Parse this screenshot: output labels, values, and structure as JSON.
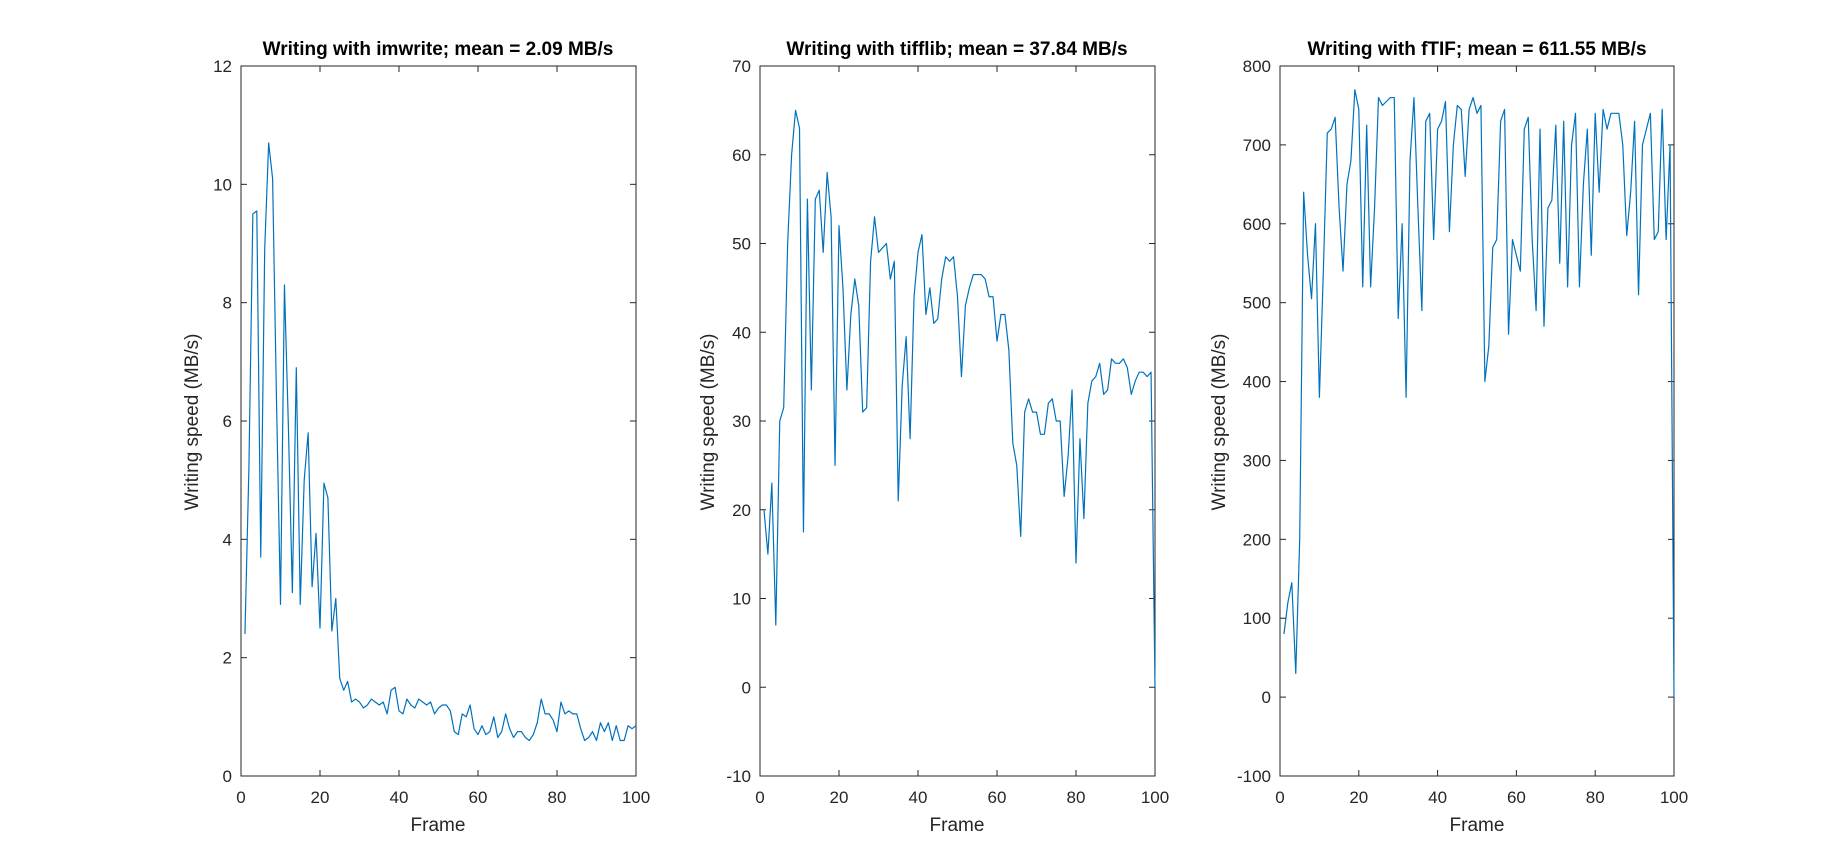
{
  "chart_data": [
    {
      "type": "line",
      "title": "Writing with imwrite; mean = 2.09 MB/s",
      "xlabel": "Frame",
      "ylabel": "Writing speed (MB/s)",
      "xlim": [
        0,
        100
      ],
      "ylim": [
        0,
        12
      ],
      "xticks": [
        "0",
        "20",
        "40",
        "60",
        "80",
        "100"
      ],
      "yticks": [
        "0",
        "2",
        "4",
        "6",
        "8",
        "10",
        "12"
      ],
      "grid": false,
      "color": "#0072BD",
      "x": [
        1,
        2,
        3,
        4,
        5,
        6,
        7,
        8,
        9,
        10,
        11,
        12,
        13,
        14,
        15,
        16,
        17,
        18,
        19,
        20,
        21,
        22,
        23,
        24,
        25,
        26,
        27,
        28,
        29,
        30,
        31,
        32,
        33,
        34,
        35,
        36,
        37,
        38,
        39,
        40,
        41,
        42,
        43,
        44,
        45,
        46,
        47,
        48,
        49,
        50,
        51,
        52,
        53,
        54,
        55,
        56,
        57,
        58,
        59,
        60,
        61,
        62,
        63,
        64,
        65,
        66,
        67,
        68,
        69,
        70,
        71,
        72,
        73,
        74,
        75,
        76,
        77,
        78,
        79,
        80,
        81,
        82,
        83,
        84,
        85,
        86,
        87,
        88,
        89,
        90,
        91,
        92,
        93,
        94,
        95,
        96,
        97,
        98,
        99,
        100
      ],
      "y": [
        2.4,
        5.2,
        9.5,
        9.55,
        3.7,
        8.9,
        10.7,
        10.1,
        6.3,
        2.9,
        8.3,
        5.9,
        3.1,
        6.9,
        2.9,
        5.0,
        5.8,
        3.2,
        4.1,
        2.5,
        4.95,
        4.7,
        2.45,
        3.0,
        1.65,
        1.45,
        1.6,
        1.25,
        1.3,
        1.25,
        1.15,
        1.2,
        1.3,
        1.25,
        1.2,
        1.25,
        1.05,
        1.45,
        1.5,
        1.1,
        1.05,
        1.3,
        1.2,
        1.15,
        1.3,
        1.25,
        1.2,
        1.25,
        1.05,
        1.15,
        1.2,
        1.2,
        1.1,
        0.75,
        0.7,
        1.05,
        1.0,
        1.2,
        0.8,
        0.7,
        0.85,
        0.7,
        0.75,
        1.0,
        0.65,
        0.75,
        1.05,
        0.8,
        0.65,
        0.75,
        0.75,
        0.65,
        0.6,
        0.7,
        0.9,
        1.3,
        1.05,
        1.05,
        0.95,
        0.75,
        1.25,
        1.05,
        1.1,
        1.05,
        1.05,
        0.8,
        0.6,
        0.65,
        0.75,
        0.6,
        0.9,
        0.75,
        0.9,
        0.6,
        0.85,
        0.6,
        0.6,
        0.85,
        0.8,
        0.85
      ]
    },
    {
      "type": "line",
      "title": "Writing with tifflib; mean = 37.84 MB/s",
      "xlabel": "Frame",
      "ylabel": "Writing speed (MB/s)",
      "xlim": [
        0,
        100
      ],
      "ylim": [
        -10,
        70
      ],
      "xticks": [
        "0",
        "20",
        "40",
        "60",
        "80",
        "100"
      ],
      "yticks": [
        "-10",
        "0",
        "10",
        "20",
        "30",
        "40",
        "50",
        "60",
        "70"
      ],
      "grid": false,
      "color": "#0072BD",
      "x": [
        1,
        2,
        3,
        4,
        5,
        6,
        7,
        8,
        9,
        10,
        11,
        12,
        13,
        14,
        15,
        16,
        17,
        18,
        19,
        20,
        21,
        22,
        23,
        24,
        25,
        26,
        27,
        28,
        29,
        30,
        31,
        32,
        33,
        34,
        35,
        36,
        37,
        38,
        39,
        40,
        41,
        42,
        43,
        44,
        45,
        46,
        47,
        48,
        49,
        50,
        51,
        52,
        53,
        54,
        55,
        56,
        57,
        58,
        59,
        60,
        61,
        62,
        63,
        64,
        65,
        66,
        67,
        68,
        69,
        70,
        71,
        72,
        73,
        74,
        75,
        76,
        77,
        78,
        79,
        80,
        81,
        82,
        83,
        84,
        85,
        86,
        87,
        88,
        89,
        90,
        91,
        92,
        93,
        94,
        95,
        96,
        97,
        98,
        99,
        100
      ],
      "y": [
        20,
        15,
        23,
        7,
        30,
        31.5,
        50,
        60,
        65,
        63,
        17.5,
        55,
        33.5,
        55,
        56,
        49,
        58,
        53,
        25,
        52,
        45,
        33.5,
        42,
        46,
        43,
        31,
        31.5,
        48,
        53,
        49,
        49.5,
        50,
        46,
        48,
        21,
        34,
        39.5,
        28,
        44,
        49,
        51,
        42,
        45,
        41,
        41.5,
        46,
        48.5,
        48,
        48.5,
        44,
        35,
        43,
        45,
        46.5,
        46.5,
        46.5,
        46,
        44,
        44,
        39,
        42,
        42,
        38,
        27.5,
        25,
        17,
        31,
        32.5,
        31,
        31,
        28.5,
        28.5,
        32,
        32.5,
        30,
        30,
        21.5,
        26,
        33.5,
        14,
        28,
        19,
        32,
        34.5,
        35,
        36.5,
        33,
        33.5,
        37,
        36.5,
        36.5,
        37,
        36,
        33,
        34.5,
        35.5,
        35.5,
        35,
        35.5,
        0
      ]
    },
    {
      "type": "line",
      "title": "Writing with fTIF; mean = 611.55 MB/s",
      "xlabel": "Frame",
      "ylabel": "Writing speed (MB/s)",
      "xlim": [
        0,
        100
      ],
      "ylim": [
        -100,
        800
      ],
      "xticks": [
        "0",
        "20",
        "40",
        "60",
        "80",
        "100"
      ],
      "yticks": [
        "-100",
        "0",
        "100",
        "200",
        "300",
        "400",
        "500",
        "600",
        "700",
        "800"
      ],
      "grid": false,
      "color": "#0072BD",
      "x": [
        1,
        2,
        3,
        4,
        5,
        6,
        7,
        8,
        9,
        10,
        11,
        12,
        13,
        14,
        15,
        16,
        17,
        18,
        19,
        20,
        21,
        22,
        23,
        24,
        25,
        26,
        27,
        28,
        29,
        30,
        31,
        32,
        33,
        34,
        35,
        36,
        37,
        38,
        39,
        40,
        41,
        42,
        43,
        44,
        45,
        46,
        47,
        48,
        49,
        50,
        51,
        52,
        53,
        54,
        55,
        56,
        57,
        58,
        59,
        60,
        61,
        62,
        63,
        64,
        65,
        66,
        67,
        68,
        69,
        70,
        71,
        72,
        73,
        74,
        75,
        76,
        77,
        78,
        79,
        80,
        81,
        82,
        83,
        84,
        85,
        86,
        87,
        88,
        89,
        90,
        91,
        92,
        93,
        94,
        95,
        96,
        97,
        98,
        99,
        100
      ],
      "y": [
        80,
        120,
        145,
        30,
        200,
        640,
        560,
        505,
        600,
        380,
        540,
        715,
        720,
        735,
        620,
        540,
        650,
        680,
        770,
        745,
        520,
        725,
        520,
        620,
        760,
        750,
        755,
        760,
        760,
        480,
        600,
        380,
        680,
        760,
        620,
        490,
        730,
        740,
        580,
        720,
        730,
        755,
        590,
        700,
        750,
        745,
        660,
        745,
        760,
        740,
        750,
        400,
        445,
        570,
        580,
        730,
        745,
        460,
        580,
        560,
        540,
        720,
        735,
        580,
        490,
        720,
        470,
        620,
        630,
        725,
        550,
        730,
        520,
        700,
        740,
        520,
        650,
        720,
        560,
        740,
        640,
        745,
        720,
        740,
        740,
        740,
        700,
        585,
        640,
        730,
        510,
        700,
        720,
        740,
        580,
        590,
        745,
        580,
        700,
        0
      ]
    }
  ]
}
